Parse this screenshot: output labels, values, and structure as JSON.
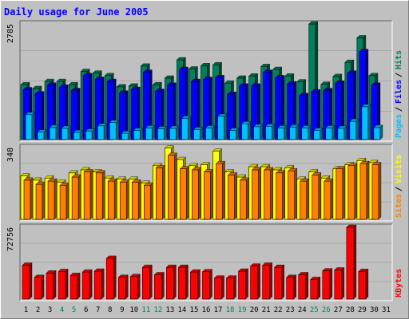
{
  "chart_data": [
    {
      "type": "bar",
      "title": "Daily usage for June 2005",
      "categories": [
        "1",
        "2",
        "3",
        "4",
        "5",
        "6",
        "7",
        "8",
        "9",
        "10",
        "11",
        "12",
        "13",
        "14",
        "15",
        "16",
        "17",
        "18",
        "19",
        "20",
        "21",
        "22",
        "23",
        "24",
        "25",
        "26",
        "27",
        "28",
        "29",
        "30",
        "31"
      ],
      "weekend_days": [
        "4",
        "5",
        "11",
        "12",
        "18",
        "19",
        "25",
        "26"
      ],
      "ylabel_max": "2785",
      "ylim": [
        0,
        2785
      ],
      "legend": [
        {
          "name": "Hits",
          "color": "#00805c"
        },
        {
          "name": "Files",
          "color": "#0000ff"
        },
        {
          "name": "Pages",
          "color": "#00c0ff"
        }
      ],
      "series": [
        {
          "name": "Hits",
          "color": "#00805c",
          "values": [
            1320,
            1230,
            1400,
            1400,
            1320,
            1640,
            1600,
            1540,
            1270,
            1290,
            1770,
            1320,
            1480,
            1920,
            1700,
            1780,
            1800,
            1360,
            1480,
            1530,
            1760,
            1690,
            1530,
            1390,
            2785,
            1330,
            1520,
            1860,
            2450,
            1540,
            0
          ]
        },
        {
          "name": "Files",
          "color": "#0000ff",
          "values": [
            1200,
            1100,
            1310,
            1260,
            1180,
            1540,
            1450,
            1400,
            1120,
            1210,
            1620,
            1160,
            1310,
            1690,
            1400,
            1450,
            1490,
            1090,
            1290,
            1290,
            1620,
            1490,
            1340,
            1060,
            1150,
            1180,
            1360,
            1600,
            2120,
            1310,
            0
          ]
        },
        {
          "name": "Pages",
          "color": "#00c0ff",
          "values": [
            600,
            180,
            290,
            270,
            170,
            200,
            330,
            410,
            150,
            220,
            280,
            260,
            270,
            510,
            240,
            280,
            560,
            220,
            380,
            310,
            320,
            280,
            300,
            280,
            220,
            280,
            270,
            440,
            790,
            290,
            0
          ]
        }
      ]
    },
    {
      "type": "bar",
      "ylabel_max": "348",
      "ylim": [
        0,
        348
      ],
      "legend": [
        {
          "name": "Visits",
          "color": "#ffff00"
        },
        {
          "name": "Sites",
          "color": "#ff8000"
        }
      ],
      "series": [
        {
          "name": "Visits",
          "color": "#ffff00",
          "values": [
            210,
            190,
            200,
            180,
            225,
            240,
            230,
            200,
            195,
            195,
            175,
            260,
            345,
            290,
            260,
            265,
            330,
            230,
            205,
            255,
            255,
            240,
            250,
            195,
            230,
            200,
            245,
            265,
            285,
            275,
            0
          ]
        },
        {
          "name": "Sites",
          "color": "#ff8000",
          "values": [
            190,
            170,
            185,
            165,
            205,
            230,
            225,
            185,
            180,
            180,
            165,
            250,
            310,
            245,
            240,
            230,
            270,
            215,
            190,
            240,
            240,
            225,
            235,
            185,
            215,
            185,
            245,
            260,
            270,
            265,
            0
          ]
        }
      ]
    },
    {
      "type": "bar",
      "ylabel_max": "72756",
      "ylim": [
        0,
        72756
      ],
      "legend": [
        {
          "name": "KBytes",
          "color": "#ff0000"
        }
      ],
      "series": [
        {
          "name": "KBytes",
          "color": "#ff0000",
          "values": [
            34300,
            22000,
            26400,
            27900,
            24000,
            27400,
            28300,
            41300,
            22000,
            22800,
            32200,
            24700,
            32200,
            32200,
            27400,
            27700,
            21300,
            21300,
            28300,
            33400,
            34300,
            32200,
            22000,
            24700,
            19900,
            28600,
            29500,
            72756,
            28000,
            0,
            0
          ]
        }
      ]
    }
  ],
  "colors": {
    "plot_bg": "#c0c0c0",
    "outer_bg": "#c0c0c0",
    "title": "#0000ff",
    "weekday_label": "#000000",
    "weekend_label": "#00805c"
  }
}
